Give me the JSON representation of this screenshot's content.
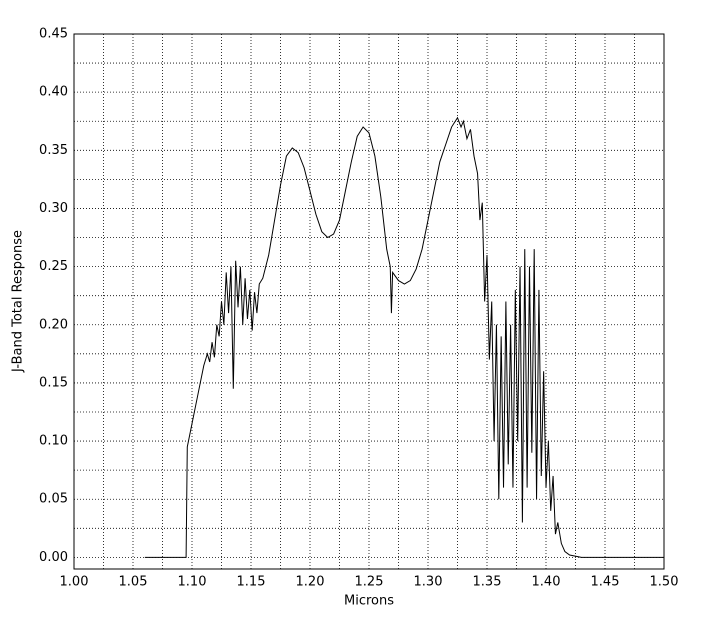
{
  "chart_data": {
    "type": "line",
    "x_label": "Microns",
    "y_label": "J-Band Total Response",
    "xlim": [
      1.0,
      1.5
    ],
    "ylim": [
      -0.01,
      0.45
    ],
    "grid": true,
    "color": "#000000",
    "xticks": [
      {
        "value": 1.0,
        "label": "1.00"
      },
      {
        "value": 1.05,
        "label": "1.05"
      },
      {
        "value": 1.1,
        "label": "1.10"
      },
      {
        "value": 1.15,
        "label": "1.15"
      },
      {
        "value": 1.2,
        "label": "1.20"
      },
      {
        "value": 1.25,
        "label": "1.25"
      },
      {
        "value": 1.3,
        "label": "1.30"
      },
      {
        "value": 1.35,
        "label": "1.35"
      },
      {
        "value": 1.4,
        "label": "1.40"
      },
      {
        "value": 1.45,
        "label": "1.45"
      },
      {
        "value": 1.5,
        "label": "1.50"
      }
    ],
    "yticks": [
      {
        "value": 0,
        "label": "0.00"
      },
      {
        "value": 0.05,
        "label": "0.05"
      },
      {
        "value": 0.1,
        "label": "0.10"
      },
      {
        "value": 0.15,
        "label": "0.15"
      },
      {
        "value": 0.2,
        "label": "0.20"
      },
      {
        "value": 0.25,
        "label": "0.25"
      },
      {
        "value": 0.3,
        "label": "0.30"
      },
      {
        "value": 0.35,
        "label": "0.35"
      },
      {
        "value": 0.4,
        "label": "0.40"
      },
      {
        "value": 0.45,
        "label": "0.45"
      }
    ],
    "x": [
      1.06,
      1.095,
      1.096,
      1.1,
      1.105,
      1.11,
      1.113,
      1.115,
      1.117,
      1.119,
      1.121,
      1.123,
      1.125,
      1.127,
      1.129,
      1.131,
      1.133,
      1.135,
      1.137,
      1.139,
      1.141,
      1.143,
      1.145,
      1.147,
      1.149,
      1.151,
      1.153,
      1.155,
      1.157,
      1.16,
      1.165,
      1.17,
      1.175,
      1.18,
      1.185,
      1.19,
      1.195,
      1.2,
      1.205,
      1.21,
      1.215,
      1.22,
      1.225,
      1.23,
      1.235,
      1.24,
      1.245,
      1.25,
      1.255,
      1.26,
      1.265,
      1.268,
      1.269,
      1.27,
      1.275,
      1.28,
      1.285,
      1.29,
      1.295,
      1.3,
      1.305,
      1.31,
      1.315,
      1.32,
      1.325,
      1.328,
      1.33,
      1.333,
      1.336,
      1.339,
      1.342,
      1.344,
      1.346,
      1.348,
      1.35,
      1.352,
      1.354,
      1.356,
      1.358,
      1.36,
      1.362,
      1.364,
      1.366,
      1.368,
      1.37,
      1.372,
      1.374,
      1.376,
      1.378,
      1.38,
      1.382,
      1.384,
      1.386,
      1.388,
      1.39,
      1.392,
      1.394,
      1.396,
      1.398,
      1.4,
      1.402,
      1.404,
      1.406,
      1.408,
      1.41,
      1.413,
      1.416,
      1.42,
      1.43,
      1.5
    ],
    "values": [
      0,
      0,
      0.095,
      0.115,
      0.14,
      0.165,
      0.175,
      0.168,
      0.185,
      0.172,
      0.2,
      0.19,
      0.22,
      0.2,
      0.245,
      0.21,
      0.25,
      0.145,
      0.255,
      0.215,
      0.25,
      0.2,
      0.24,
      0.205,
      0.23,
      0.195,
      0.228,
      0.21,
      0.235,
      0.24,
      0.26,
      0.29,
      0.32,
      0.345,
      0.352,
      0.348,
      0.335,
      0.315,
      0.295,
      0.28,
      0.275,
      0.278,
      0.29,
      0.315,
      0.34,
      0.362,
      0.37,
      0.365,
      0.345,
      0.31,
      0.265,
      0.25,
      0.21,
      0.245,
      0.238,
      0.235,
      0.238,
      0.248,
      0.265,
      0.29,
      0.315,
      0.34,
      0.355,
      0.37,
      0.378,
      0.37,
      0.375,
      0.36,
      0.368,
      0.345,
      0.33,
      0.29,
      0.305,
      0.22,
      0.26,
      0.17,
      0.22,
      0.1,
      0.2,
      0.05,
      0.19,
      0.06,
      0.22,
      0.08,
      0.2,
      0.06,
      0.23,
      0.1,
      0.25,
      0.03,
      0.265,
      0.06,
      0.25,
      0.09,
      0.265,
      0.05,
      0.23,
      0.07,
      0.16,
      0.06,
      0.1,
      0.04,
      0.07,
      0.02,
      0.03,
      0.012,
      0.005,
      0.002,
      0,
      0
    ]
  }
}
